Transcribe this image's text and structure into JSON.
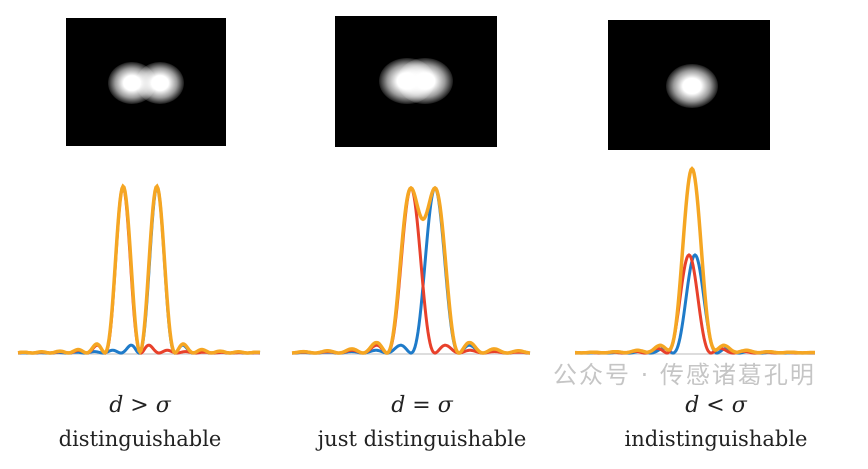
{
  "panels": [
    {
      "condition": "d > σ",
      "caption": "distinguishable"
    },
    {
      "condition": "d = σ",
      "caption": "just distinguishable"
    },
    {
      "condition": "d < σ",
      "caption": "indistinguishable"
    }
  ],
  "colors": {
    "source1": "#e8412b",
    "source2": "#1f7bc9",
    "sum": "#f5a623"
  },
  "watermark": "公众号 · 传感诸葛孔明"
}
